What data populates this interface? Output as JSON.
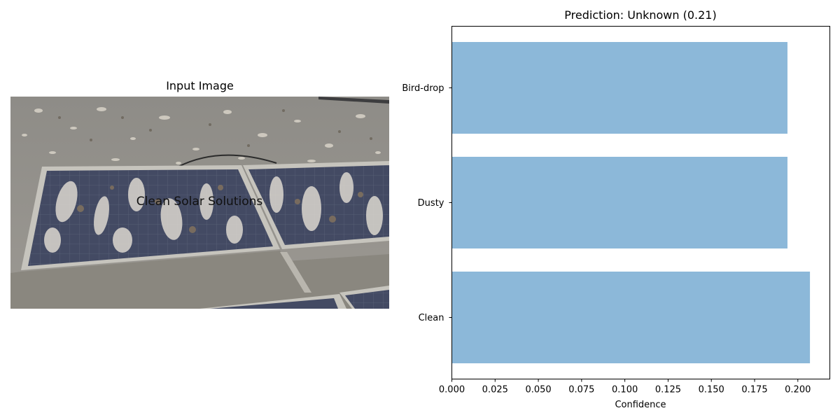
{
  "image_panel": {
    "title": "Input Image",
    "watermark": "Clean Solar Solutions"
  },
  "colors": {
    "bar": "#8cb8d9",
    "axis": "#000000"
  },
  "chart_data": {
    "type": "bar",
    "orientation": "horizontal",
    "title": "Prediction: Unknown (0.21)",
    "xlabel": "Confidence",
    "ylabel": "",
    "categories": [
      "Clean",
      "Dusty",
      "Bird-drop"
    ],
    "values": [
      0.207,
      0.194,
      0.194
    ],
    "xlim": [
      0.0,
      0.2185
    ],
    "xticks": [
      "0.000",
      "0.025",
      "0.050",
      "0.075",
      "0.100",
      "0.125",
      "0.150",
      "0.175",
      "0.200"
    ],
    "grid": false,
    "legend": "none"
  }
}
